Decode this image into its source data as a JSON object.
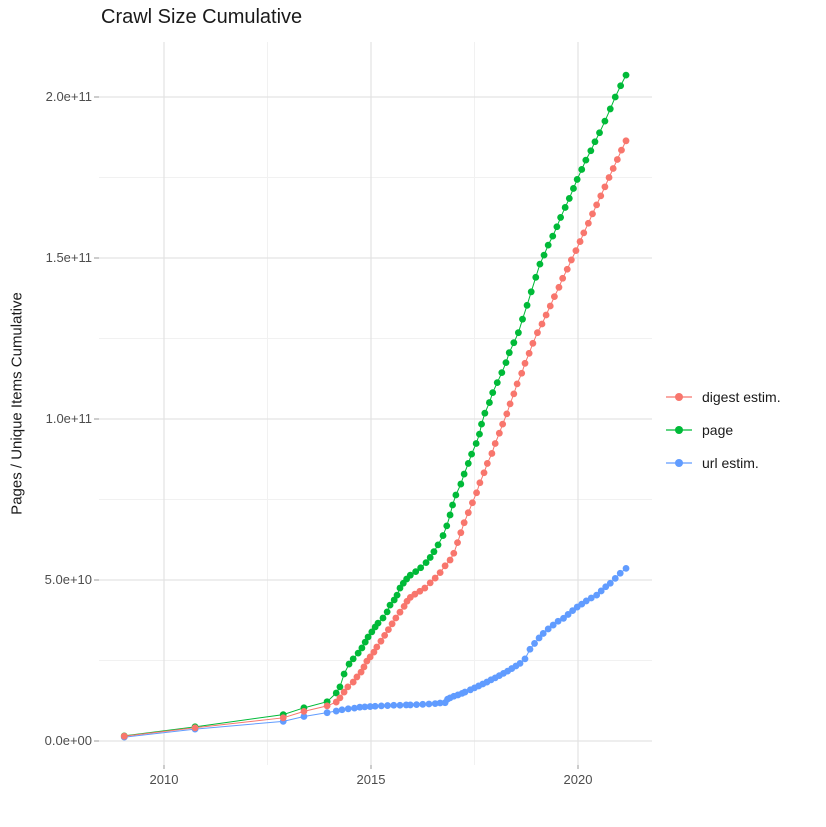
{
  "chart_data": {
    "type": "scatter",
    "title": "Crawl Size Cumulative",
    "xlabel": "",
    "ylabel": "Pages / Unique Items Cumulative",
    "value_unit": "billions of pages (1e9)",
    "grid": true,
    "legend_position": "right",
    "xlim": [
      2008.4,
      2021.8
    ],
    "ylim_billions": [
      -10,
      217
    ],
    "x_ticks": {
      "values": [
        2010,
        2015,
        2020
      ],
      "labels": [
        "2010",
        "2015",
        "2020"
      ]
    },
    "y_ticks": {
      "values_billions": [
        0,
        50,
        100,
        150,
        200
      ],
      "labels": [
        "0.0e+00",
        "5.0e+10",
        "1.0e+11",
        "1.5e+11",
        "2.0e+11"
      ]
    },
    "x_minor_gridlines": [
      2012.5,
      2017.5
    ],
    "y_minor_gridlines_billions": [
      25,
      75,
      125,
      175
    ],
    "series": [
      {
        "name": "digest estim.",
        "color": "#F8766D",
        "points": [
          [
            2009.04,
            1.5
          ],
          [
            2010.75,
            4.1
          ],
          [
            2012.88,
            7.2
          ],
          [
            2013.38,
            9.2
          ],
          [
            2013.94,
            10.9
          ],
          [
            2014.16,
            12.1
          ],
          [
            2014.25,
            13.4
          ],
          [
            2014.35,
            15.2
          ],
          [
            2014.44,
            16.8
          ],
          [
            2014.57,
            18.3
          ],
          [
            2014.66,
            19.9
          ],
          [
            2014.76,
            21.4
          ],
          [
            2014.83,
            23.0
          ],
          [
            2014.9,
            24.8
          ],
          [
            2014.98,
            26.1
          ],
          [
            2015.07,
            27.6
          ],
          [
            2015.14,
            29.2
          ],
          [
            2015.24,
            31.0
          ],
          [
            2015.33,
            32.8
          ],
          [
            2015.42,
            34.6
          ],
          [
            2015.51,
            36.4
          ],
          [
            2015.6,
            38.2
          ],
          [
            2015.7,
            40.0
          ],
          [
            2015.8,
            41.8
          ],
          [
            2015.87,
            43.4
          ],
          [
            2015.95,
            44.6
          ],
          [
            2016.06,
            45.6
          ],
          [
            2016.18,
            46.5
          ],
          [
            2016.3,
            47.5
          ],
          [
            2016.43,
            49.1
          ],
          [
            2016.55,
            50.6
          ],
          [
            2016.67,
            52.3
          ],
          [
            2016.79,
            54.4
          ],
          [
            2016.91,
            56.2
          ],
          [
            2017.0,
            58.3
          ],
          [
            2017.09,
            61.6
          ],
          [
            2017.17,
            64.7
          ],
          [
            2017.25,
            67.8
          ],
          [
            2017.35,
            70.9
          ],
          [
            2017.45,
            74.0
          ],
          [
            2017.55,
            77.1
          ],
          [
            2017.63,
            80.2
          ],
          [
            2017.73,
            83.3
          ],
          [
            2017.81,
            86.2
          ],
          [
            2017.92,
            89.3
          ],
          [
            2018.0,
            92.4
          ],
          [
            2018.1,
            95.6
          ],
          [
            2018.18,
            98.4
          ],
          [
            2018.28,
            101.6
          ],
          [
            2018.36,
            104.7
          ],
          [
            2018.45,
            107.8
          ],
          [
            2018.53,
            110.9
          ],
          [
            2018.64,
            114.2
          ],
          [
            2018.72,
            117.3
          ],
          [
            2018.82,
            120.4
          ],
          [
            2018.91,
            123.5
          ],
          [
            2019.02,
            126.8
          ],
          [
            2019.13,
            129.5
          ],
          [
            2019.23,
            132.3
          ],
          [
            2019.33,
            135.1
          ],
          [
            2019.43,
            138.0
          ],
          [
            2019.54,
            140.9
          ],
          [
            2019.63,
            143.7
          ],
          [
            2019.74,
            146.5
          ],
          [
            2019.84,
            149.4
          ],
          [
            2019.95,
            152.3
          ],
          [
            2020.05,
            155.1
          ],
          [
            2020.14,
            157.8
          ],
          [
            2020.25,
            160.8
          ],
          [
            2020.35,
            163.7
          ],
          [
            2020.45,
            166.5
          ],
          [
            2020.55,
            169.3
          ],
          [
            2020.65,
            172.1
          ],
          [
            2020.75,
            175.0
          ],
          [
            2020.85,
            177.8
          ],
          [
            2020.95,
            180.6
          ],
          [
            2021.05,
            183.5
          ],
          [
            2021.16,
            186.4
          ]
        ]
      },
      {
        "name": "page",
        "color": "#00BA38",
        "points": [
          [
            2009.04,
            1.6
          ],
          [
            2010.75,
            4.4
          ],
          [
            2012.88,
            8.2
          ],
          [
            2013.38,
            10.3
          ],
          [
            2013.94,
            12.2
          ],
          [
            2014.16,
            14.9
          ],
          [
            2014.25,
            16.8
          ],
          [
            2014.35,
            20.8
          ],
          [
            2014.47,
            23.9
          ],
          [
            2014.57,
            25.5
          ],
          [
            2014.69,
            27.3
          ],
          [
            2014.78,
            28.9
          ],
          [
            2014.86,
            30.7
          ],
          [
            2014.93,
            32.3
          ],
          [
            2015.02,
            33.9
          ],
          [
            2015.1,
            35.4
          ],
          [
            2015.17,
            36.6
          ],
          [
            2015.29,
            38.2
          ],
          [
            2015.39,
            40.1
          ],
          [
            2015.46,
            42.2
          ],
          [
            2015.56,
            43.8
          ],
          [
            2015.63,
            45.3
          ],
          [
            2015.7,
            47.5
          ],
          [
            2015.78,
            49.0
          ],
          [
            2015.86,
            50.3
          ],
          [
            2015.95,
            51.5
          ],
          [
            2016.08,
            52.6
          ],
          [
            2016.2,
            53.8
          ],
          [
            2016.33,
            55.4
          ],
          [
            2016.43,
            57.0
          ],
          [
            2016.52,
            58.8
          ],
          [
            2016.62,
            60.9
          ],
          [
            2016.74,
            63.8
          ],
          [
            2016.83,
            66.8
          ],
          [
            2016.91,
            70.2
          ],
          [
            2016.97,
            73.3
          ],
          [
            2017.05,
            76.4
          ],
          [
            2017.17,
            79.8
          ],
          [
            2017.25,
            82.9
          ],
          [
            2017.35,
            86.2
          ],
          [
            2017.43,
            89.1
          ],
          [
            2017.54,
            92.4
          ],
          [
            2017.62,
            95.3
          ],
          [
            2017.67,
            98.4
          ],
          [
            2017.75,
            101.8
          ],
          [
            2017.86,
            105.1
          ],
          [
            2017.94,
            108.2
          ],
          [
            2018.05,
            111.3
          ],
          [
            2018.16,
            114.4
          ],
          [
            2018.26,
            117.5
          ],
          [
            2018.34,
            120.6
          ],
          [
            2018.45,
            123.7
          ],
          [
            2018.56,
            126.8
          ],
          [
            2018.66,
            131.0
          ],
          [
            2018.77,
            135.3
          ],
          [
            2018.87,
            139.5
          ],
          [
            2018.98,
            144.0
          ],
          [
            2019.08,
            148.1
          ],
          [
            2019.18,
            150.9
          ],
          [
            2019.28,
            154.0
          ],
          [
            2019.39,
            156.8
          ],
          [
            2019.49,
            159.7
          ],
          [
            2019.58,
            162.6
          ],
          [
            2019.69,
            165.7
          ],
          [
            2019.79,
            168.5
          ],
          [
            2019.89,
            171.6
          ],
          [
            2019.98,
            174.4
          ],
          [
            2020.09,
            177.5
          ],
          [
            2020.19,
            180.4
          ],
          [
            2020.31,
            183.3
          ],
          [
            2020.41,
            186.1
          ],
          [
            2020.52,
            188.9
          ],
          [
            2020.65,
            192.5
          ],
          [
            2020.78,
            196.3
          ],
          [
            2020.9,
            200.0
          ],
          [
            2021.03,
            203.5
          ],
          [
            2021.16,
            206.8
          ]
        ]
      },
      {
        "name": "url estim.",
        "color": "#619CFF",
        "points": [
          [
            2009.04,
            1.2
          ],
          [
            2010.75,
            3.7
          ],
          [
            2012.88,
            6.1
          ],
          [
            2013.38,
            7.6
          ],
          [
            2013.94,
            8.8
          ],
          [
            2014.16,
            9.3
          ],
          [
            2014.3,
            9.7
          ],
          [
            2014.45,
            10.0
          ],
          [
            2014.6,
            10.2
          ],
          [
            2014.73,
            10.5
          ],
          [
            2014.85,
            10.6
          ],
          [
            2014.98,
            10.7
          ],
          [
            2015.1,
            10.8
          ],
          [
            2015.25,
            10.9
          ],
          [
            2015.4,
            11.0
          ],
          [
            2015.55,
            11.1
          ],
          [
            2015.7,
            11.1
          ],
          [
            2015.85,
            11.2
          ],
          [
            2015.95,
            11.2
          ],
          [
            2016.1,
            11.3
          ],
          [
            2016.25,
            11.4
          ],
          [
            2016.4,
            11.5
          ],
          [
            2016.55,
            11.6
          ],
          [
            2016.67,
            11.8
          ],
          [
            2016.79,
            11.9
          ],
          [
            2016.85,
            13.0
          ],
          [
            2016.91,
            13.4
          ],
          [
            2017.0,
            13.9
          ],
          [
            2017.1,
            14.3
          ],
          [
            2017.2,
            14.8
          ],
          [
            2017.27,
            15.2
          ],
          [
            2017.4,
            15.9
          ],
          [
            2017.5,
            16.5
          ],
          [
            2017.6,
            17.1
          ],
          [
            2017.7,
            17.7
          ],
          [
            2017.8,
            18.3
          ],
          [
            2017.9,
            19.0
          ],
          [
            2018.0,
            19.6
          ],
          [
            2018.1,
            20.3
          ],
          [
            2018.2,
            21.0
          ],
          [
            2018.3,
            21.7
          ],
          [
            2018.4,
            22.5
          ],
          [
            2018.5,
            23.3
          ],
          [
            2018.6,
            24.1
          ],
          [
            2018.72,
            25.5
          ],
          [
            2018.84,
            28.5
          ],
          [
            2018.95,
            30.3
          ],
          [
            2019.06,
            32.0
          ],
          [
            2019.16,
            33.4
          ],
          [
            2019.28,
            34.8
          ],
          [
            2019.4,
            36.0
          ],
          [
            2019.52,
            37.2
          ],
          [
            2019.65,
            38.1
          ],
          [
            2019.76,
            39.3
          ],
          [
            2019.87,
            40.5
          ],
          [
            2019.98,
            41.6
          ],
          [
            2020.09,
            42.5
          ],
          [
            2020.2,
            43.5
          ],
          [
            2020.32,
            44.4
          ],
          [
            2020.45,
            45.3
          ],
          [
            2020.56,
            46.6
          ],
          [
            2020.67,
            47.9
          ],
          [
            2020.78,
            49.0
          ],
          [
            2020.9,
            50.5
          ],
          [
            2021.02,
            52.1
          ],
          [
            2021.16,
            53.6
          ]
        ]
      }
    ]
  }
}
